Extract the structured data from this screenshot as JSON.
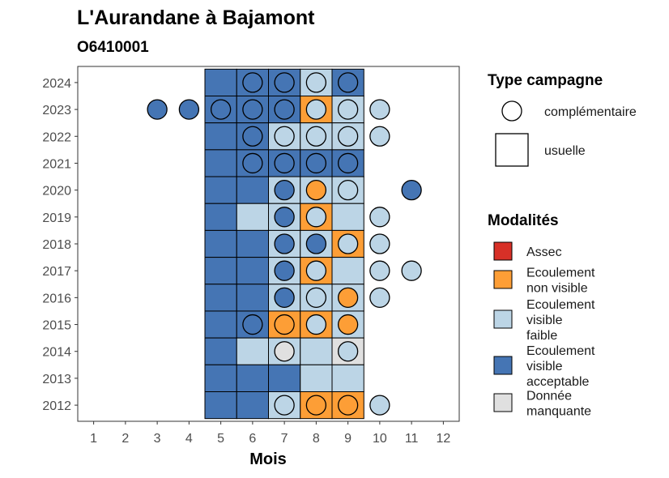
{
  "chart_data": {
    "type": "heatmap",
    "title": "L'Aurandane à Bajamont",
    "subtitle": "O6410001",
    "xlabel": "Mois",
    "ylabel": "",
    "x_ticks": [
      1,
      2,
      3,
      4,
      5,
      6,
      7,
      8,
      9,
      10,
      11,
      12
    ],
    "y_ticks": [
      2012,
      2013,
      2014,
      2015,
      2016,
      2017,
      2018,
      2019,
      2020,
      2021,
      2022,
      2023,
      2024
    ],
    "xlim": [
      0.5,
      12.5
    ],
    "ylim": [
      2011.4,
      2024.6
    ],
    "grid": false,
    "colors": {
      "Assec": "#d73027",
      "Ecoulement non visible": "#fd9e36",
      "Ecoulement visible faible": "#bcd5e6",
      "Ecoulement visible acceptable": "#4575b4",
      "Donnée manquante": "#e0e0e0"
    },
    "usuelle": [
      {
        "year": 2024,
        "month": 5,
        "modalite": "Ecoulement visible acceptable"
      },
      {
        "year": 2024,
        "month": 6,
        "modalite": "Ecoulement visible acceptable"
      },
      {
        "year": 2024,
        "month": 7,
        "modalite": "Ecoulement visible acceptable"
      },
      {
        "year": 2024,
        "month": 8,
        "modalite": "Ecoulement visible faible"
      },
      {
        "year": 2024,
        "month": 9,
        "modalite": "Ecoulement visible acceptable"
      },
      {
        "year": 2023,
        "month": 5,
        "modalite": "Ecoulement visible acceptable"
      },
      {
        "year": 2023,
        "month": 6,
        "modalite": "Ecoulement visible acceptable"
      },
      {
        "year": 2023,
        "month": 7,
        "modalite": "Ecoulement visible acceptable"
      },
      {
        "year": 2023,
        "month": 8,
        "modalite": "Ecoulement non visible"
      },
      {
        "year": 2023,
        "month": 9,
        "modalite": "Ecoulement visible faible"
      },
      {
        "year": 2022,
        "month": 5,
        "modalite": "Ecoulement visible acceptable"
      },
      {
        "year": 2022,
        "month": 6,
        "modalite": "Ecoulement visible acceptable"
      },
      {
        "year": 2022,
        "month": 7,
        "modalite": "Ecoulement visible faible"
      },
      {
        "year": 2022,
        "month": 8,
        "modalite": "Ecoulement visible faible"
      },
      {
        "year": 2022,
        "month": 9,
        "modalite": "Ecoulement visible faible"
      },
      {
        "year": 2021,
        "month": 5,
        "modalite": "Ecoulement visible acceptable"
      },
      {
        "year": 2021,
        "month": 6,
        "modalite": "Ecoulement visible acceptable"
      },
      {
        "year": 2021,
        "month": 7,
        "modalite": "Ecoulement visible acceptable"
      },
      {
        "year": 2021,
        "month": 8,
        "modalite": "Ecoulement visible acceptable"
      },
      {
        "year": 2021,
        "month": 9,
        "modalite": "Ecoulement visible acceptable"
      },
      {
        "year": 2020,
        "month": 5,
        "modalite": "Ecoulement visible acceptable"
      },
      {
        "year": 2020,
        "month": 6,
        "modalite": "Ecoulement visible acceptable"
      },
      {
        "year": 2020,
        "month": 7,
        "modalite": "Ecoulement visible faible"
      },
      {
        "year": 2020,
        "month": 8,
        "modalite": "Ecoulement visible faible"
      },
      {
        "year": 2020,
        "month": 9,
        "modalite": "Ecoulement visible faible"
      },
      {
        "year": 2019,
        "month": 5,
        "modalite": "Ecoulement visible acceptable"
      },
      {
        "year": 2019,
        "month": 6,
        "modalite": "Ecoulement visible faible"
      },
      {
        "year": 2019,
        "month": 7,
        "modalite": "Ecoulement visible faible"
      },
      {
        "year": 2019,
        "month": 8,
        "modalite": "Ecoulement non visible"
      },
      {
        "year": 2019,
        "month": 9,
        "modalite": "Ecoulement visible faible"
      },
      {
        "year": 2018,
        "month": 5,
        "modalite": "Ecoulement visible acceptable"
      },
      {
        "year": 2018,
        "month": 6,
        "modalite": "Ecoulement visible acceptable"
      },
      {
        "year": 2018,
        "month": 7,
        "modalite": "Ecoulement visible faible"
      },
      {
        "year": 2018,
        "month": 8,
        "modalite": "Ecoulement visible faible"
      },
      {
        "year": 2018,
        "month": 9,
        "modalite": "Ecoulement non visible"
      },
      {
        "year": 2017,
        "month": 5,
        "modalite": "Ecoulement visible acceptable"
      },
      {
        "year": 2017,
        "month": 6,
        "modalite": "Ecoulement visible acceptable"
      },
      {
        "year": 2017,
        "month": 7,
        "modalite": "Ecoulement visible faible"
      },
      {
        "year": 2017,
        "month": 8,
        "modalite": "Ecoulement non visible"
      },
      {
        "year": 2017,
        "month": 9,
        "modalite": "Ecoulement visible faible"
      },
      {
        "year": 2016,
        "month": 5,
        "modalite": "Ecoulement visible acceptable"
      },
      {
        "year": 2016,
        "month": 6,
        "modalite": "Ecoulement visible acceptable"
      },
      {
        "year": 2016,
        "month": 7,
        "modalite": "Ecoulement visible faible"
      },
      {
        "year": 2016,
        "month": 8,
        "modalite": "Ecoulement visible faible"
      },
      {
        "year": 2016,
        "month": 9,
        "modalite": "Ecoulement visible faible"
      },
      {
        "year": 2015,
        "month": 5,
        "modalite": "Ecoulement visible acceptable"
      },
      {
        "year": 2015,
        "month": 6,
        "modalite": "Ecoulement visible acceptable"
      },
      {
        "year": 2015,
        "month": 7,
        "modalite": "Ecoulement non visible"
      },
      {
        "year": 2015,
        "month": 8,
        "modalite": "Ecoulement non visible"
      },
      {
        "year": 2015,
        "month": 9,
        "modalite": "Ecoulement visible faible"
      },
      {
        "year": 2014,
        "month": 5,
        "modalite": "Ecoulement visible acceptable"
      },
      {
        "year": 2014,
        "month": 6,
        "modalite": "Ecoulement visible faible"
      },
      {
        "year": 2014,
        "month": 7,
        "modalite": "Ecoulement visible faible"
      },
      {
        "year": 2014,
        "month": 8,
        "modalite": "Ecoulement visible faible"
      },
      {
        "year": 2014,
        "month": 9,
        "modalite": "Donnée manquante"
      },
      {
        "year": 2013,
        "month": 5,
        "modalite": "Ecoulement visible acceptable"
      },
      {
        "year": 2013,
        "month": 6,
        "modalite": "Ecoulement visible acceptable"
      },
      {
        "year": 2013,
        "month": 7,
        "modalite": "Ecoulement visible acceptable"
      },
      {
        "year": 2013,
        "month": 8,
        "modalite": "Ecoulement visible faible"
      },
      {
        "year": 2013,
        "month": 9,
        "modalite": "Ecoulement visible faible"
      },
      {
        "year": 2012,
        "month": 5,
        "modalite": "Ecoulement visible acceptable"
      },
      {
        "year": 2012,
        "month": 6,
        "modalite": "Ecoulement visible acceptable"
      },
      {
        "year": 2012,
        "month": 7,
        "modalite": "Ecoulement visible faible"
      },
      {
        "year": 2012,
        "month": 8,
        "modalite": "Ecoulement non visible"
      },
      {
        "year": 2012,
        "month": 9,
        "modalite": "Ecoulement non visible"
      }
    ],
    "complementaire": [
      {
        "year": 2024,
        "month": 6,
        "modalite": "Ecoulement visible acceptable"
      },
      {
        "year": 2024,
        "month": 7,
        "modalite": "Ecoulement visible acceptable"
      },
      {
        "year": 2024,
        "month": 8,
        "modalite": "Ecoulement visible faible"
      },
      {
        "year": 2024,
        "month": 9,
        "modalite": "Ecoulement visible acceptable"
      },
      {
        "year": 2023,
        "month": 3,
        "modalite": "Ecoulement visible acceptable"
      },
      {
        "year": 2023,
        "month": 4,
        "modalite": "Ecoulement visible acceptable"
      },
      {
        "year": 2023,
        "month": 5,
        "modalite": "Ecoulement visible acceptable"
      },
      {
        "year": 2023,
        "month": 6,
        "modalite": "Ecoulement visible acceptable"
      },
      {
        "year": 2023,
        "month": 7,
        "modalite": "Ecoulement visible acceptable"
      },
      {
        "year": 2023,
        "month": 8,
        "modalite": "Ecoulement visible faible"
      },
      {
        "year": 2023,
        "month": 9,
        "modalite": "Ecoulement visible faible"
      },
      {
        "year": 2023,
        "month": 10,
        "modalite": "Ecoulement visible faible"
      },
      {
        "year": 2022,
        "month": 6,
        "modalite": "Ecoulement visible acceptable"
      },
      {
        "year": 2022,
        "month": 7,
        "modalite": "Ecoulement visible faible"
      },
      {
        "year": 2022,
        "month": 8,
        "modalite": "Ecoulement visible faible"
      },
      {
        "year": 2022,
        "month": 9,
        "modalite": "Ecoulement visible faible"
      },
      {
        "year": 2022,
        "month": 10,
        "modalite": "Ecoulement visible faible"
      },
      {
        "year": 2021,
        "month": 6,
        "modalite": "Ecoulement visible acceptable"
      },
      {
        "year": 2021,
        "month": 7,
        "modalite": "Ecoulement visible acceptable"
      },
      {
        "year": 2021,
        "month": 8,
        "modalite": "Ecoulement visible acceptable"
      },
      {
        "year": 2021,
        "month": 9,
        "modalite": "Ecoulement visible acceptable"
      },
      {
        "year": 2020,
        "month": 7,
        "modalite": "Ecoulement visible acceptable"
      },
      {
        "year": 2020,
        "month": 8,
        "modalite": "Ecoulement non visible"
      },
      {
        "year": 2020,
        "month": 9,
        "modalite": "Ecoulement visible faible"
      },
      {
        "year": 2020,
        "month": 11,
        "modalite": "Ecoulement visible acceptable"
      },
      {
        "year": 2019,
        "month": 7,
        "modalite": "Ecoulement visible acceptable"
      },
      {
        "year": 2019,
        "month": 8,
        "modalite": "Ecoulement visible faible"
      },
      {
        "year": 2019,
        "month": 10,
        "modalite": "Ecoulement visible faible"
      },
      {
        "year": 2018,
        "month": 7,
        "modalite": "Ecoulement visible acceptable"
      },
      {
        "year": 2018,
        "month": 8,
        "modalite": "Ecoulement visible acceptable"
      },
      {
        "year": 2018,
        "month": 9,
        "modalite": "Ecoulement visible faible"
      },
      {
        "year": 2018,
        "month": 10,
        "modalite": "Ecoulement visible faible"
      },
      {
        "year": 2017,
        "month": 7,
        "modalite": "Ecoulement visible acceptable"
      },
      {
        "year": 2017,
        "month": 8,
        "modalite": "Ecoulement visible faible"
      },
      {
        "year": 2017,
        "month": 10,
        "modalite": "Ecoulement visible faible"
      },
      {
        "year": 2017,
        "month": 11,
        "modalite": "Ecoulement visible faible"
      },
      {
        "year": 2016,
        "month": 7,
        "modalite": "Ecoulement visible acceptable"
      },
      {
        "year": 2016,
        "month": 8,
        "modalite": "Ecoulement visible faible"
      },
      {
        "year": 2016,
        "month": 9,
        "modalite": "Ecoulement non visible"
      },
      {
        "year": 2016,
        "month": 10,
        "modalite": "Ecoulement visible faible"
      },
      {
        "year": 2015,
        "month": 6,
        "modalite": "Ecoulement visible acceptable"
      },
      {
        "year": 2015,
        "month": 7,
        "modalite": "Ecoulement non visible"
      },
      {
        "year": 2015,
        "month": 8,
        "modalite": "Ecoulement visible faible"
      },
      {
        "year": 2015,
        "month": 9,
        "modalite": "Ecoulement non visible"
      },
      {
        "year": 2014,
        "month": 7,
        "modalite": "Donnée manquante"
      },
      {
        "year": 2014,
        "month": 9,
        "modalite": "Ecoulement visible faible"
      },
      {
        "year": 2012,
        "month": 7,
        "modalite": "Ecoulement visible faible"
      },
      {
        "year": 2012,
        "month": 8,
        "modalite": "Ecoulement non visible"
      },
      {
        "year": 2012,
        "month": 9,
        "modalite": "Ecoulement non visible"
      },
      {
        "year": 2012,
        "month": 10,
        "modalite": "Ecoulement visible faible"
      }
    ]
  },
  "legend": {
    "type_title": "Type campagne",
    "type_items": [
      "complémentaire",
      "usuelle"
    ],
    "modalites_title": "Modalités",
    "modalites_items": [
      {
        "key": "Assec",
        "lines": [
          "Assec"
        ]
      },
      {
        "key": "Ecoulement non visible",
        "lines": [
          "Ecoulement",
          "non visible"
        ]
      },
      {
        "key": "Ecoulement visible faible",
        "lines": [
          "Ecoulement",
          "visible",
          "faible"
        ]
      },
      {
        "key": "Ecoulement visible acceptable",
        "lines": [
          "Ecoulement",
          "visible",
          "acceptable"
        ]
      },
      {
        "key": "Donnée manquante",
        "lines": [
          "Donnée",
          "manquante"
        ]
      }
    ]
  }
}
